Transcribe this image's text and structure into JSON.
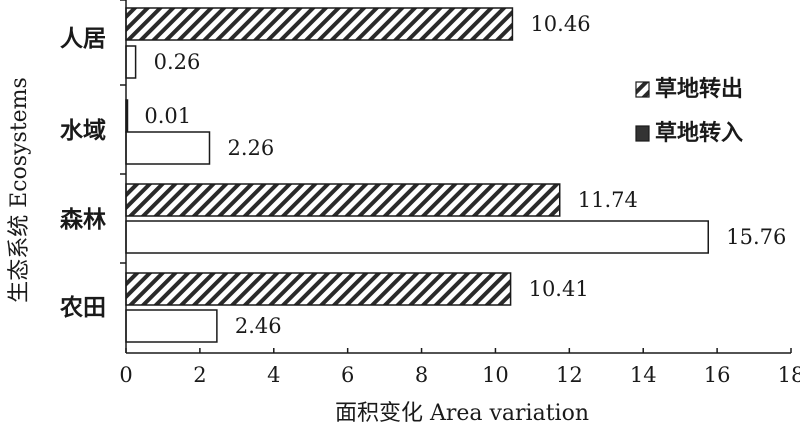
{
  "chart_data": {
    "type": "bar",
    "orientation": "horizontal",
    "categories": [
      "人居",
      "水域",
      "森林",
      "农田"
    ],
    "series": [
      {
        "name": "草地转出",
        "values": [
          10.46,
          0.01,
          11.74,
          10.41
        ],
        "pattern": "diagonal-hatch"
      },
      {
        "name": "草地转入",
        "values": [
          0.26,
          2.26,
          15.76,
          2.46
        ],
        "pattern": "solid"
      }
    ],
    "value_labels": [
      [
        "10.46",
        "0.01",
        "11.74",
        "10.41"
      ],
      [
        "0.26",
        "2.26",
        "15.76",
        "2.46"
      ]
    ],
    "xlabel": "面积变化 Area variation",
    "ylabel": "生态系统 Ecosystems",
    "xlim": [
      0,
      18
    ],
    "xticks": [
      "0",
      "2",
      "4",
      "6",
      "8",
      "10",
      "12",
      "14",
      "16",
      "18"
    ],
    "grid": false,
    "legend_position": "right",
    "colors": {
      "outline": "#1a1a1a",
      "fill": "#ffffff",
      "legend_solid": "#333333"
    }
  }
}
